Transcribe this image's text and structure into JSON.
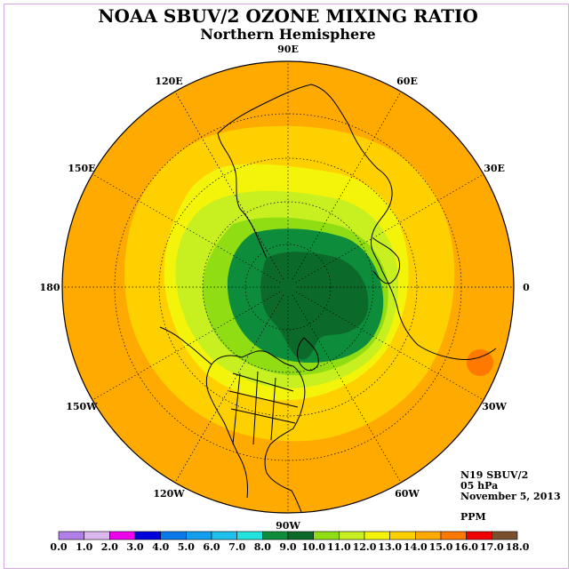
{
  "header": {
    "title": "NOAA SBUV/2 OZONE MIXING RATIO",
    "subtitle": "Northern Hemisphere"
  },
  "longitude_labels": [
    {
      "label": "90E",
      "deg": 90
    },
    {
      "label": "60E",
      "deg": 60
    },
    {
      "label": "30E",
      "deg": 30
    },
    {
      "label": "0",
      "deg": 0
    },
    {
      "label": "30W",
      "deg": -30
    },
    {
      "label": "60W",
      "deg": -60
    },
    {
      "label": "90W",
      "deg": -90
    },
    {
      "label": "120W",
      "deg": -120
    },
    {
      "label": "150W",
      "deg": -150
    },
    {
      "label": "180",
      "deg": 180
    },
    {
      "label": "150E",
      "deg": 150
    },
    {
      "label": "120E",
      "deg": 120
    }
  ],
  "info": {
    "instrument": "N19 SBUV/2",
    "level": "05 hPa",
    "date": "November 5, 2013",
    "units": "PPM"
  },
  "legend": {
    "levels": [
      "0.0",
      "1.0",
      "2.0",
      "3.0",
      "4.0",
      "5.0",
      "6.0",
      "7.0",
      "8.0",
      "9.0",
      "10.0",
      "11.0",
      "12.0",
      "13.0",
      "14.0",
      "15.0",
      "16.0",
      "17.0",
      "18.0"
    ],
    "colors": [
      "#b07fe8",
      "#dbb7ef",
      "#ee00ee",
      "#0000dd",
      "#0a78e8",
      "#12a0ee",
      "#1ec0ee",
      "#22e4dd",
      "#0d8c3c",
      "#0b6a2a",
      "#90dd14",
      "#c8f020",
      "#f4f40a",
      "#ffd000",
      "#ffaa00",
      "#ff7800",
      "#ee0000",
      "#7a4f2e"
    ]
  },
  "colors": {
    "ocean_background": "#ffaa00",
    "coastline": "#000000",
    "grid": "#000000"
  }
}
